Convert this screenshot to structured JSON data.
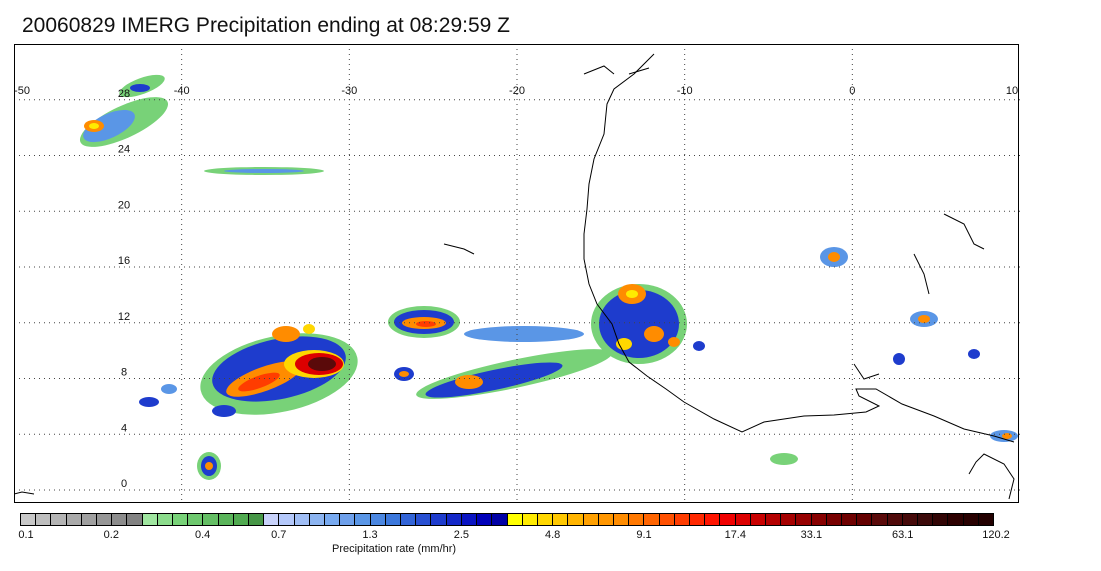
{
  "title": "20060829 IMERG Precipitation ending at 08:29:59 Z",
  "map": {
    "lon_range": [
      -50,
      10
    ],
    "lat_range": [
      -1,
      32
    ],
    "lon_labels": [
      "-50",
      "-40",
      "-30",
      "-20",
      "-10",
      "0",
      "10"
    ],
    "lat_labels": [
      "0",
      "4",
      "8",
      "12",
      "16",
      "20",
      "24",
      "28"
    ],
    "grid": "dotted",
    "coastline_color": "#000000"
  },
  "legend": {
    "title": "Precipitation rate (mm/hr)",
    "tick_labels": [
      "0.1",
      "0.2",
      "0.4",
      "0.7",
      "1.3",
      "2.5",
      "4.8",
      "9.1",
      "17.4",
      "33.1",
      "63.1",
      "120.2"
    ],
    "colors": [
      "#c8c8c8",
      "#bebebe",
      "#b4b4b4",
      "#aaaaaa",
      "#a0a0a0",
      "#969696",
      "#8c8c8c",
      "#828282",
      "#a0e6a0",
      "#8cdc8c",
      "#78d278",
      "#6ec86e",
      "#64be64",
      "#5ab45a",
      "#50aa50",
      "#469646",
      "#c8d2fa",
      "#b4c8fa",
      "#a0bef5",
      "#8cb4f0",
      "#78aaf0",
      "#6ea0eb",
      "#5a96e6",
      "#4b87e1",
      "#3c78dc",
      "#3264d7",
      "#2850d2",
      "#1e3ccd",
      "#1428c8",
      "#0a14c3",
      "#0000b9",
      "#0000a5",
      "#ffff00",
      "#ffeb00",
      "#ffd700",
      "#ffc800",
      "#ffb400",
      "#ffa000",
      "#ff9600",
      "#ff8c00",
      "#ff7800",
      "#ff6400",
      "#ff5000",
      "#ff3c00",
      "#ff2800",
      "#ff1400",
      "#f00000",
      "#dc0000",
      "#c80000",
      "#b40000",
      "#a50000",
      "#960000",
      "#870000",
      "#780000",
      "#6e0000",
      "#640000",
      "#5a0a0a",
      "#500a0a",
      "#460a0a",
      "#3c0a0a",
      "#320505",
      "#2d0000",
      "#280000",
      "#230000"
    ]
  }
}
